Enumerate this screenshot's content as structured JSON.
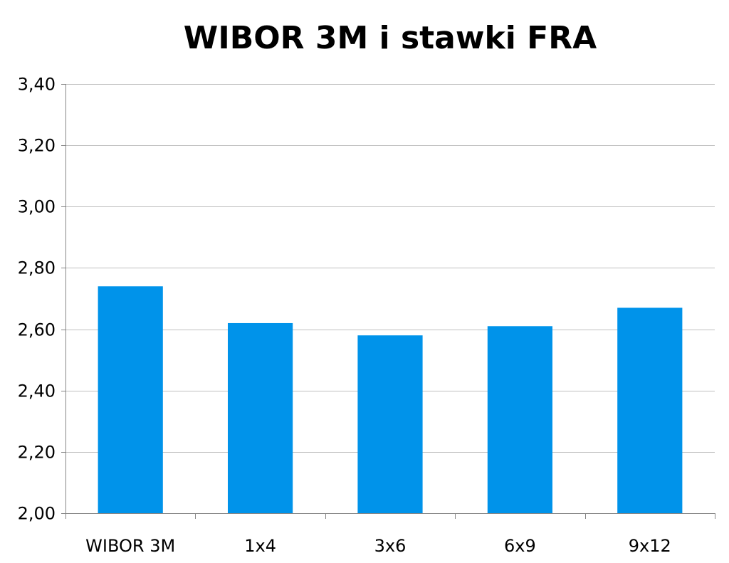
{
  "chart_data": {
    "type": "bar",
    "title": "WIBOR 3M i stawki FRA",
    "categories": [
      "WIBOR 3M",
      "1x4",
      "3x6",
      "6x9",
      "9x12"
    ],
    "values": [
      2.74,
      2.62,
      2.58,
      2.61,
      2.67
    ],
    "ylim": [
      2.0,
      3.4
    ],
    "yticks": [
      "2,00",
      "2,20",
      "2,40",
      "2,60",
      "2,80",
      "3,00",
      "3,20",
      "3,40"
    ],
    "ytick_values": [
      2.0,
      2.2,
      2.4,
      2.6,
      2.8,
      3.0,
      3.2,
      3.4
    ],
    "grid": true,
    "legend": "none",
    "bar_color": "#0093EA",
    "grid_color": "#BFBFBF",
    "axis_color": "#868686"
  }
}
